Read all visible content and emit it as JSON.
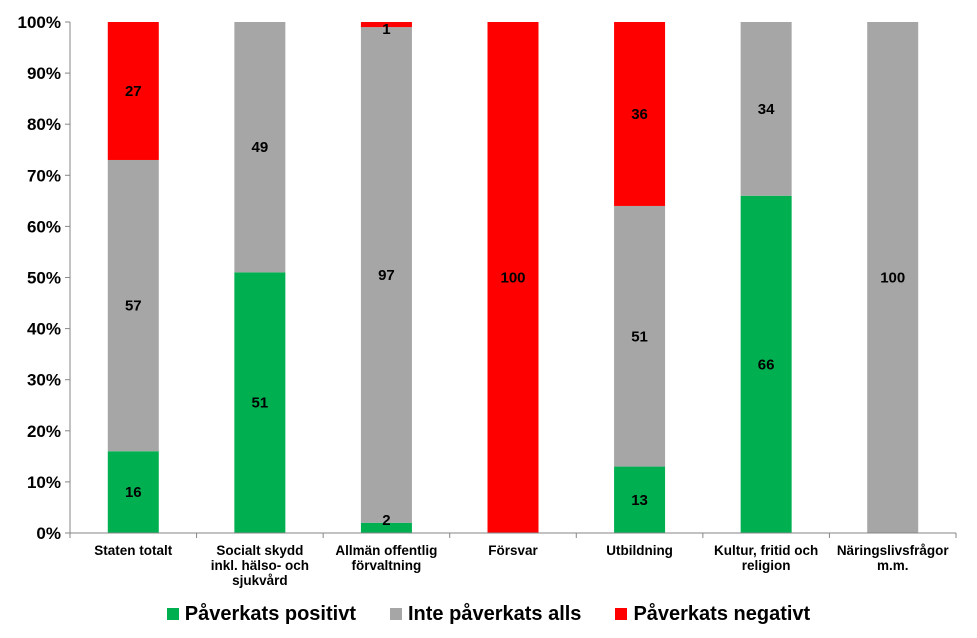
{
  "chart_data": {
    "type": "bar",
    "stacked": true,
    "normalized": true,
    "categories": [
      "Staten totalt",
      "Socialt skydd inkl. hälso- och sjukvård",
      "Allmän offentlig förvaltning",
      "Försvar",
      "Utbildning",
      "Kultur, fritid och religion",
      "Näringslivsfrågor m.m."
    ],
    "category_lines": [
      [
        "Staten totalt"
      ],
      [
        "Socialt skydd",
        "inkl. hälso- och",
        "sjukvård"
      ],
      [
        "Allmän offentlig",
        "förvaltning"
      ],
      [
        "Försvar"
      ],
      [
        "Utbildning"
      ],
      [
        "Kultur, fritid och",
        "religion"
      ],
      [
        "Näringslivsfrågor",
        "m.m."
      ]
    ],
    "series": [
      {
        "name": "Påverkats positivt",
        "color": "#00b050",
        "values": [
          16,
          51,
          2,
          0,
          13,
          66,
          0
        ]
      },
      {
        "name": "Inte påverkats alls",
        "color": "#a6a6a6",
        "values": [
          57,
          49,
          97,
          0,
          51,
          34,
          100
        ]
      },
      {
        "name": "Påverkats negativt",
        "color": "#ff0000",
        "values": [
          27,
          0,
          1,
          100,
          36,
          0,
          0
        ]
      }
    ],
    "ylim": [
      0,
      100
    ],
    "yticks": [
      "0%",
      "10%",
      "20%",
      "30%",
      "40%",
      "50%",
      "60%",
      "70%",
      "80%",
      "90%",
      "100%"
    ],
    "grid": false,
    "legend_position": "bottom"
  }
}
